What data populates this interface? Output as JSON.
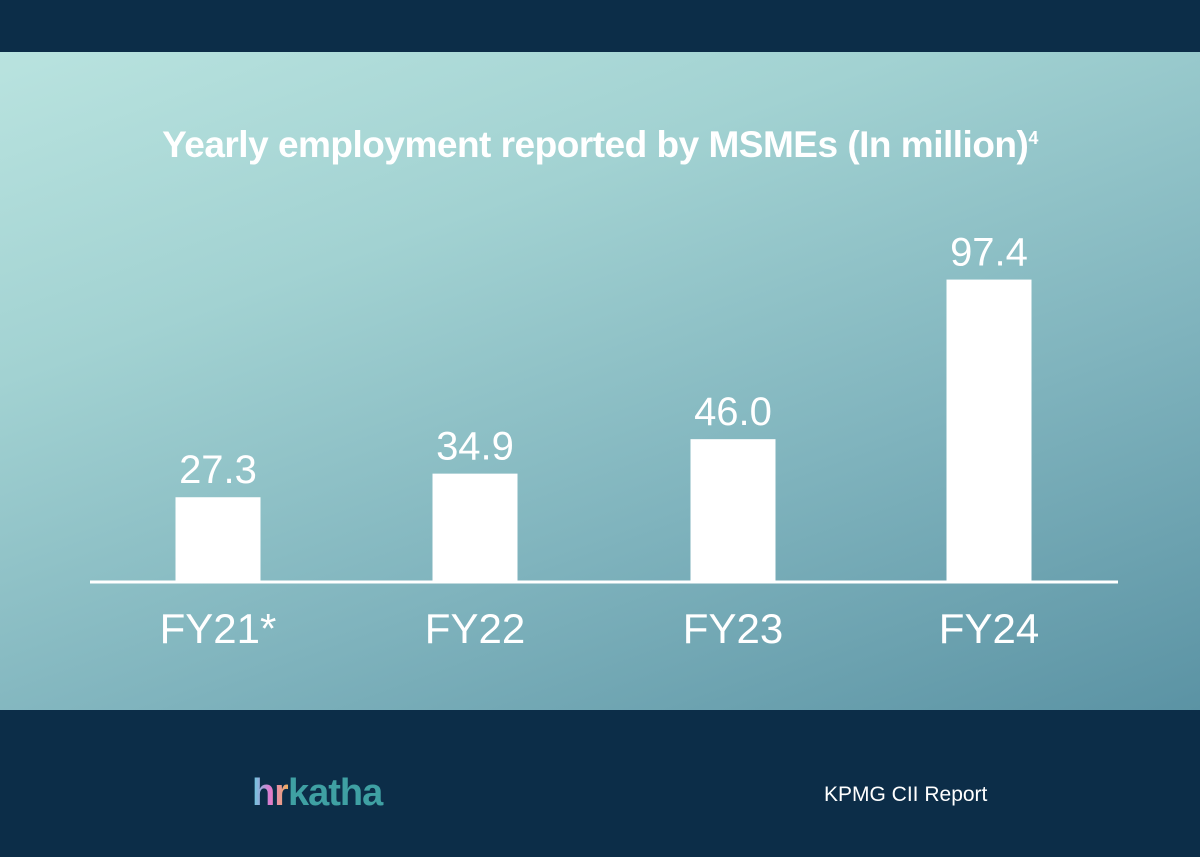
{
  "chart_data": {
    "type": "bar",
    "title": "Yearly employment reported by MSMEs  (In million)",
    "title_superscript": "4",
    "categories": [
      "FY21*",
      "FY22",
      "FY23",
      "FY24"
    ],
    "values": [
      27.3,
      34.9,
      46.0,
      97.4
    ],
    "data_labels": [
      "27.3",
      "34.9",
      "46.0",
      "97.4"
    ],
    "xlabel": "",
    "ylabel": "",
    "ylim": [
      0,
      110
    ],
    "grid": false,
    "bar_color": "#ffffff"
  },
  "footer": {
    "logo_text_a": "hr",
    "logo_text_b": "katha",
    "source": "KPMG CII Report"
  },
  "colors": {
    "background_dark": "#0c2d48",
    "panel_light": "#b9e3df",
    "panel_dark": "#5b93a4"
  }
}
